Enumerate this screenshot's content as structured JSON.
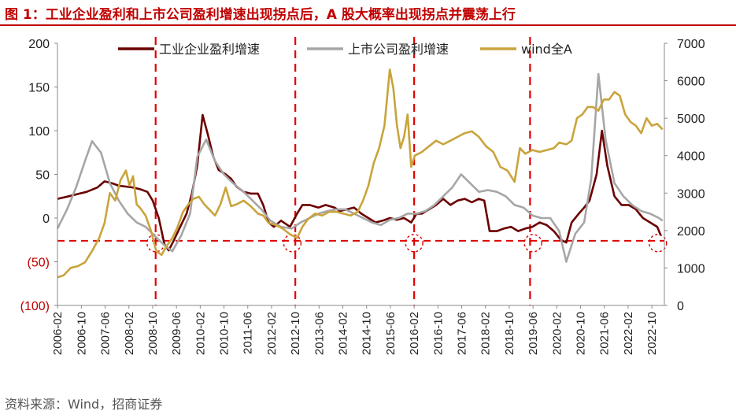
{
  "title": "图 1：工业企业盈利和上市公司盈利增速出现拐点后，A 股大概率出现拐点并震荡上行",
  "source": "资料来源：Wind，招商证券",
  "chart_data": {
    "type": "line",
    "x_labels": [
      "2006-02",
      "2006-10",
      "2007-06",
      "2008-02",
      "2008-10",
      "2009-06",
      "2010-02",
      "2010-10",
      "2011-06",
      "2012-02",
      "2012-10",
      "2013-06",
      "2014-02",
      "2014-10",
      "2015-06",
      "2016-02",
      "2016-10",
      "2017-06",
      "2018-02",
      "2018-10",
      "2019-06",
      "2020-02",
      "2020-10",
      "2021-06",
      "2022-02",
      "2022-10"
    ],
    "left_axis": {
      "min": -100,
      "max": 200,
      "ticks": [
        200,
        150,
        100,
        50,
        0,
        -50,
        -100
      ],
      "tick_labels": [
        "200",
        "150",
        "100",
        "50",
        "0",
        "(50)",
        "(100)"
      ]
    },
    "right_axis": {
      "min": 0,
      "max": 7000,
      "ticks": [
        7000,
        6000,
        5000,
        4000,
        3000,
        2000,
        1000,
        0
      ],
      "tick_labels": [
        "7000",
        "6000",
        "5000",
        "4000",
        "3000",
        "2000",
        "1000",
        "0"
      ]
    },
    "legend": [
      "工业企业盈利增速",
      "上市公司盈利增速",
      "wind全A"
    ],
    "colors": {
      "industrial": "#6b0000",
      "listed": "#a6a6a6",
      "winda": "#c9a43b",
      "reference": "#e00000"
    },
    "vertical_markers": [
      "2008-11",
      "2012-10",
      "2016-02",
      "2019-05"
    ],
    "horizontal_reference": -26,
    "circle_markers": [
      "2008-11",
      "2012-09",
      "2016-02",
      "2019-06",
      "2022-12"
    ],
    "series": [
      {
        "name": "工业企业盈利增速",
        "axis": "left",
        "points": [
          [
            2006.08,
            22
          ],
          [
            2006.4,
            25
          ],
          [
            2006.7,
            28
          ],
          [
            2006.9,
            30
          ],
          [
            2007.2,
            35
          ],
          [
            2007.4,
            42
          ],
          [
            2007.6,
            40
          ],
          [
            2007.8,
            37
          ],
          [
            2008.0,
            36
          ],
          [
            2008.2,
            35
          ],
          [
            2008.4,
            33
          ],
          [
            2008.6,
            30
          ],
          [
            2008.75,
            20
          ],
          [
            2008.92,
            0
          ],
          [
            2009.08,
            -30
          ],
          [
            2009.2,
            -37
          ],
          [
            2009.35,
            -25
          ],
          [
            2009.5,
            -12
          ],
          [
            2009.7,
            5
          ],
          [
            2009.85,
            28
          ],
          [
            2010.0,
            60
          ],
          [
            2010.15,
            118
          ],
          [
            2010.3,
            95
          ],
          [
            2010.45,
            70
          ],
          [
            2010.6,
            55
          ],
          [
            2010.8,
            50
          ],
          [
            2010.95,
            45
          ],
          [
            2011.1,
            36
          ],
          [
            2011.3,
            30
          ],
          [
            2011.5,
            28
          ],
          [
            2011.7,
            28
          ],
          [
            2011.85,
            15
          ],
          [
            2012.0,
            -5
          ],
          [
            2012.15,
            -10
          ],
          [
            2012.35,
            -3
          ],
          [
            2012.6,
            -10
          ],
          [
            2012.8,
            5
          ],
          [
            2012.95,
            15
          ],
          [
            2013.15,
            15
          ],
          [
            2013.4,
            12
          ],
          [
            2013.6,
            15
          ],
          [
            2013.85,
            12
          ],
          [
            2014.0,
            8
          ],
          [
            2014.2,
            10
          ],
          [
            2014.4,
            12
          ],
          [
            2014.6,
            5
          ],
          [
            2014.8,
            0
          ],
          [
            2015.0,
            -5
          ],
          [
            2015.2,
            -3
          ],
          [
            2015.4,
            0
          ],
          [
            2015.6,
            -2
          ],
          [
            2015.8,
            0
          ],
          [
            2016.0,
            -5
          ],
          [
            2016.15,
            5
          ],
          [
            2016.3,
            5
          ],
          [
            2016.5,
            10
          ],
          [
            2016.7,
            15
          ],
          [
            2016.9,
            22
          ],
          [
            2017.1,
            15
          ],
          [
            2017.3,
            20
          ],
          [
            2017.5,
            22
          ],
          [
            2017.7,
            18
          ],
          [
            2017.9,
            22
          ],
          [
            2018.05,
            20
          ],
          [
            2018.2,
            -15
          ],
          [
            2018.4,
            -15
          ],
          [
            2018.6,
            -12
          ],
          [
            2018.8,
            -10
          ],
          [
            2019.0,
            -15
          ],
          [
            2019.2,
            -12
          ],
          [
            2019.4,
            -10
          ],
          [
            2019.6,
            -5
          ],
          [
            2019.8,
            -8
          ],
          [
            2020.0,
            -15
          ],
          [
            2020.2,
            -25
          ],
          [
            2020.35,
            -28
          ],
          [
            2020.5,
            -5
          ],
          [
            2020.7,
            5
          ],
          [
            2020.85,
            12
          ],
          [
            2021.0,
            20
          ],
          [
            2021.2,
            50
          ],
          [
            2021.35,
            100
          ],
          [
            2021.5,
            60
          ],
          [
            2021.7,
            25
          ],
          [
            2021.9,
            15
          ],
          [
            2022.1,
            15
          ],
          [
            2022.3,
            10
          ],
          [
            2022.5,
            0
          ],
          [
            2022.7,
            -5
          ],
          [
            2022.9,
            -10
          ],
          [
            2023.0,
            -20
          ]
        ]
      },
      {
        "name": "上市公司盈利增速",
        "axis": "left",
        "points": [
          [
            2006.08,
            -12
          ],
          [
            2006.35,
            10
          ],
          [
            2006.6,
            35
          ],
          [
            2006.85,
            65
          ],
          [
            2007.05,
            88
          ],
          [
            2007.3,
            75
          ],
          [
            2007.55,
            40
          ],
          [
            2007.8,
            20
          ],
          [
            2008.05,
            5
          ],
          [
            2008.3,
            -5
          ],
          [
            2008.55,
            -10
          ],
          [
            2008.8,
            -20
          ],
          [
            2009.05,
            -30
          ],
          [
            2009.3,
            -38
          ],
          [
            2009.55,
            -20
          ],
          [
            2009.8,
            5
          ],
          [
            2010.0,
            70
          ],
          [
            2010.25,
            90
          ],
          [
            2010.5,
            65
          ],
          [
            2010.75,
            50
          ],
          [
            2011.0,
            40
          ],
          [
            2011.3,
            30
          ],
          [
            2011.55,
            20
          ],
          [
            2011.8,
            10
          ],
          [
            2012.05,
            -3
          ],
          [
            2012.35,
            -10
          ],
          [
            2012.65,
            -12
          ],
          [
            2012.9,
            -5
          ],
          [
            2013.15,
            0
          ],
          [
            2013.4,
            5
          ],
          [
            2013.65,
            8
          ],
          [
            2013.9,
            10
          ],
          [
            2014.15,
            10
          ],
          [
            2014.4,
            5
          ],
          [
            2014.65,
            0
          ],
          [
            2014.9,
            -5
          ],
          [
            2015.15,
            -8
          ],
          [
            2015.4,
            -2
          ],
          [
            2015.65,
            0
          ],
          [
            2015.9,
            5
          ],
          [
            2016.15,
            5
          ],
          [
            2016.4,
            8
          ],
          [
            2016.65,
            15
          ],
          [
            2016.9,
            25
          ],
          [
            2017.15,
            35
          ],
          [
            2017.4,
            50
          ],
          [
            2017.65,
            40
          ],
          [
            2017.9,
            30
          ],
          [
            2018.15,
            32
          ],
          [
            2018.4,
            30
          ],
          [
            2018.65,
            25
          ],
          [
            2018.9,
            15
          ],
          [
            2019.15,
            12
          ],
          [
            2019.4,
            3
          ],
          [
            2019.65,
            0
          ],
          [
            2019.9,
            0
          ],
          [
            2020.15,
            -15
          ],
          [
            2020.35,
            -50
          ],
          [
            2020.6,
            -18
          ],
          [
            2020.85,
            -5
          ],
          [
            2021.05,
            45
          ],
          [
            2021.25,
            165
          ],
          [
            2021.45,
            90
          ],
          [
            2021.7,
            40
          ],
          [
            2021.95,
            25
          ],
          [
            2022.2,
            15
          ],
          [
            2022.45,
            8
          ],
          [
            2022.7,
            5
          ],
          [
            2022.95,
            0
          ],
          [
            2023.05,
            -3
          ]
        ]
      },
      {
        "name": "wind全A",
        "axis": "right",
        "points": [
          [
            2006.08,
            750
          ],
          [
            2006.25,
            800
          ],
          [
            2006.45,
            1000
          ],
          [
            2006.65,
            1050
          ],
          [
            2006.85,
            1150
          ],
          [
            2007.05,
            1450
          ],
          [
            2007.25,
            1800
          ],
          [
            2007.4,
            2200
          ],
          [
            2007.55,
            3000
          ],
          [
            2007.7,
            2800
          ],
          [
            2007.85,
            3350
          ],
          [
            2008.0,
            3600
          ],
          [
            2008.1,
            3200
          ],
          [
            2008.2,
            3450
          ],
          [
            2008.3,
            2700
          ],
          [
            2008.4,
            2600
          ],
          [
            2008.55,
            2400
          ],
          [
            2008.7,
            2000
          ],
          [
            2008.85,
            1450
          ],
          [
            2009.0,
            1350
          ],
          [
            2009.15,
            1600
          ],
          [
            2009.3,
            1800
          ],
          [
            2009.45,
            2100
          ],
          [
            2009.6,
            2500
          ],
          [
            2009.75,
            2700
          ],
          [
            2009.9,
            2850
          ],
          [
            2010.05,
            2900
          ],
          [
            2010.2,
            2700
          ],
          [
            2010.35,
            2550
          ],
          [
            2010.5,
            2400
          ],
          [
            2010.65,
            2700
          ],
          [
            2010.8,
            3150
          ],
          [
            2010.95,
            2650
          ],
          [
            2011.1,
            2700
          ],
          [
            2011.3,
            2800
          ],
          [
            2011.5,
            2650
          ],
          [
            2011.7,
            2450
          ],
          [
            2011.85,
            2400
          ],
          [
            2012.0,
            2200
          ],
          [
            2012.2,
            2150
          ],
          [
            2012.4,
            2050
          ],
          [
            2012.6,
            1900
          ],
          [
            2012.8,
            1800
          ],
          [
            2012.95,
            2100
          ],
          [
            2013.1,
            2300
          ],
          [
            2013.3,
            2450
          ],
          [
            2013.5,
            2400
          ],
          [
            2013.7,
            2500
          ],
          [
            2013.9,
            2500
          ],
          [
            2014.1,
            2450
          ],
          [
            2014.3,
            2400
          ],
          [
            2014.5,
            2500
          ],
          [
            2014.65,
            2800
          ],
          [
            2014.8,
            3200
          ],
          [
            2014.95,
            3800
          ],
          [
            2015.1,
            4200
          ],
          [
            2015.25,
            4800
          ],
          [
            2015.4,
            6300
          ],
          [
            2015.5,
            5800
          ],
          [
            2015.6,
            4800
          ],
          [
            2015.7,
            4200
          ],
          [
            2015.8,
            4500
          ],
          [
            2015.9,
            5100
          ],
          [
            2016.0,
            3700
          ],
          [
            2016.1,
            4000
          ],
          [
            2016.3,
            4100
          ],
          [
            2016.5,
            4250
          ],
          [
            2016.7,
            4400
          ],
          [
            2016.9,
            4300
          ],
          [
            2017.1,
            4400
          ],
          [
            2017.3,
            4500
          ],
          [
            2017.5,
            4600
          ],
          [
            2017.7,
            4650
          ],
          [
            2017.9,
            4500
          ],
          [
            2018.1,
            4250
          ],
          [
            2018.3,
            4100
          ],
          [
            2018.5,
            3700
          ],
          [
            2018.7,
            3600
          ],
          [
            2018.9,
            3300
          ],
          [
            2019.05,
            4200
          ],
          [
            2019.2,
            4050
          ],
          [
            2019.4,
            4150
          ],
          [
            2019.6,
            4100
          ],
          [
            2019.8,
            4150
          ],
          [
            2020.0,
            4200
          ],
          [
            2020.15,
            4350
          ],
          [
            2020.35,
            4300
          ],
          [
            2020.5,
            4400
          ],
          [
            2020.65,
            5000
          ],
          [
            2020.8,
            5100
          ],
          [
            2020.95,
            5300
          ],
          [
            2021.1,
            5300
          ],
          [
            2021.25,
            5200
          ],
          [
            2021.4,
            5500
          ],
          [
            2021.55,
            5500
          ],
          [
            2021.7,
            5700
          ],
          [
            2021.85,
            5600
          ],
          [
            2022.0,
            5100
          ],
          [
            2022.15,
            4900
          ],
          [
            2022.3,
            4800
          ],
          [
            2022.45,
            4600
          ],
          [
            2022.6,
            5000
          ],
          [
            2022.75,
            4800
          ],
          [
            2022.9,
            4850
          ],
          [
            2023.05,
            4700
          ]
        ]
      }
    ]
  }
}
